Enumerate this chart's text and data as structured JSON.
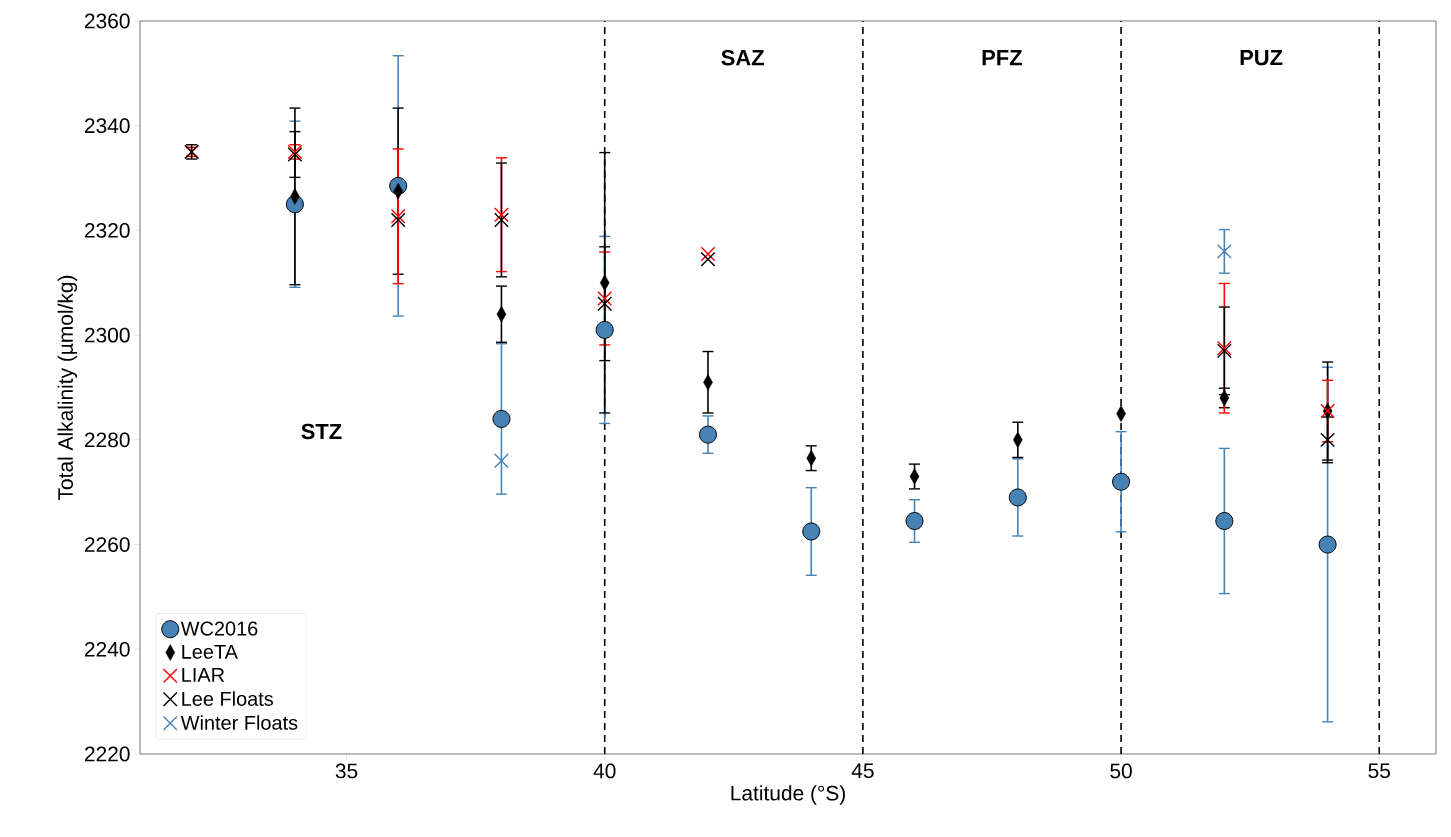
{
  "chart_data": {
    "type": "scatter",
    "xlabel": "Latitude (°S)",
    "ylabel": "Total Alkalinity (µmol/kg)",
    "x": [
      32,
      34,
      36,
      38,
      40,
      42,
      44,
      46,
      48,
      50,
      52,
      54
    ],
    "series": [
      {
        "name": "WC2016",
        "color": "#4682b4",
        "marker": "circle",
        "values": [
          null,
          2325,
          2328.5,
          2284,
          2301,
          2281,
          2262.5,
          2264.5,
          2269,
          2272,
          2264.5,
          2260
        ],
        "errors": [
          null,
          16,
          25,
          14.5,
          18,
          3.7,
          8.5,
          4.2,
          7.5,
          9.7,
          14,
          34
        ]
      },
      {
        "name": "LeeTA",
        "color": "#000000",
        "marker": "diamond",
        "values": [
          null,
          2326.5,
          2327.5,
          2304,
          2310,
          2291,
          2276.5,
          2273,
          2280,
          2285,
          2288,
          2285.5
        ],
        "errors": [
          null,
          17,
          16,
          5.5,
          25,
          6,
          2.5,
          2.5,
          3.5,
          null,
          2,
          9.5
        ]
      },
      {
        "name": "LIAR",
        "color": "#ff0000",
        "marker": "cross",
        "values": [
          2335,
          2335,
          2322.7,
          2323,
          2307,
          2315.5,
          null,
          null,
          null,
          null,
          2297.5,
          2285.5
        ],
        "errors": [
          1,
          1.5,
          13,
          11,
          9,
          null,
          null,
          null,
          null,
          null,
          12.5,
          6
        ]
      },
      {
        "name": "Lee Floats",
        "color": "#000000",
        "marker": "cross",
        "values": [
          2335,
          2334.5,
          2322,
          2322,
          2306,
          2314.5,
          null,
          null,
          null,
          null,
          2297,
          2280
        ],
        "errors": [
          1.5,
          4.5,
          null,
          11,
          11,
          null,
          null,
          null,
          null,
          null,
          8.5,
          4.5
        ]
      },
      {
        "name": "Winter Floats",
        "color": "#4682b4",
        "marker": "cross",
        "values": [
          null,
          null,
          null,
          2276,
          null,
          null,
          null,
          null,
          null,
          null,
          2316,
          null
        ],
        "errors": [
          null,
          null,
          null,
          null,
          null,
          null,
          null,
          null,
          null,
          null,
          4.3,
          null
        ]
      }
    ],
    "xlim": [
      31,
      56.1
    ],
    "ylim": [
      2220,
      2360
    ],
    "xticks": [
      35,
      40,
      45,
      50,
      55
    ],
    "yticks": [
      2220,
      2240,
      2260,
      2280,
      2300,
      2320,
      2340,
      2360
    ],
    "ref_lines": [
      {
        "axis": "x",
        "value": 40,
        "color": "#000000",
        "line_style": "dashed"
      },
      {
        "axis": "x",
        "value": 45,
        "color": "#000000",
        "line_style": "dashed"
      },
      {
        "axis": "x",
        "value": 50,
        "color": "#000000",
        "line_style": "dashed"
      },
      {
        "axis": "x",
        "value": 55,
        "color": "#000000",
        "line_style": "dashed"
      }
    ],
    "annotations": [
      "**STZ**",
      "**SAZ**",
      "**PFZ**",
      "**PUZ**"
    ],
    "legend": "bottom left"
  }
}
